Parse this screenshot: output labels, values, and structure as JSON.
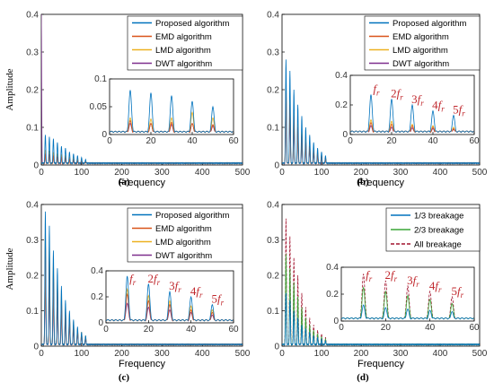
{
  "figure_title": "",
  "colors": {
    "blue": "#0072BD",
    "orange": "#D95319",
    "yellow": "#EDB120",
    "purple": "#7E2F8E",
    "green": "#3AA637",
    "red": "#A2142F",
    "harmonic_label": "#c0282d"
  },
  "chart_data": [
    {
      "id": "a",
      "type": "line",
      "caption": "(a)",
      "xlabel": "Frequency",
      "ylabel": "Amplitude",
      "xlim": [
        0,
        500
      ],
      "ylim": [
        0,
        0.4
      ],
      "xticks": [
        0,
        100,
        200,
        300,
        400,
        500
      ],
      "yticks": [
        0,
        0.1,
        0.2,
        0.3,
        0.4
      ],
      "ytick_labels": [
        "0",
        "0.1",
        "0.2",
        "0.3",
        "0.4"
      ],
      "legend": [
        "Proposed algorithm",
        "EMD algorithm",
        "LMD algorithm",
        "DWT algorithm"
      ],
      "series": [
        {
          "name": "Proposed algorithm",
          "color": "#0072BD",
          "peaks": [
            0.08,
            0.075,
            0.07,
            0.06,
            0.05,
            0.045,
            0.035,
            0.03,
            0.025,
            0.02,
            0.015
          ]
        },
        {
          "name": "EMD algorithm",
          "color": "#D95319",
          "peaks": [
            0.03,
            0.028,
            0.025,
            0.022,
            0.02,
            0.018,
            0.015,
            0.013,
            0.011,
            0.01,
            0.008
          ]
        },
        {
          "name": "LMD algorithm",
          "color": "#EDB120",
          "peaks": [
            0.04,
            0.038,
            0.034,
            0.03,
            0.028,
            0.025,
            0.022,
            0.02,
            0.017,
            0.014,
            0.012
          ]
        },
        {
          "name": "DWT algorithm",
          "color": "#7E2F8E",
          "dc": 0.4,
          "peaks": [
            0.03,
            0.028,
            0.025,
            0.022,
            0.02,
            0.018,
            0.015,
            0.013,
            0.011,
            0.01,
            0.008
          ]
        }
      ],
      "inset": {
        "xlim": [
          0,
          60
        ],
        "ylim": [
          0,
          0.1
        ],
        "xticks": [
          0,
          20,
          40,
          60
        ],
        "yticks": [
          0,
          0.05,
          0.1
        ],
        "ytick_labels": [
          "0",
          "0.05",
          "0.1"
        ],
        "harmonics": [],
        "series": [
          {
            "color": "#0072BD",
            "peaks": [
              0.08,
              0.075,
              0.07,
              0.06,
              0.05
            ]
          },
          {
            "color": "#D95319",
            "peaks": [
              0.025,
              0.02,
              0.022,
              0.02,
              0.018
            ]
          },
          {
            "color": "#EDB120",
            "peaks": [
              0.03,
              0.028,
              0.03,
              0.04,
              0.03
            ]
          },
          {
            "color": "#7E2F8E",
            "peaks": [
              0.02,
              0.02,
              0.018,
              0.02,
              0.015
            ]
          }
        ]
      }
    },
    {
      "id": "b",
      "type": "line",
      "caption": "(b)",
      "xlabel": "Frequency",
      "ylabel": "",
      "xlim": [
        0,
        500
      ],
      "ylim": [
        0,
        0.4
      ],
      "xticks": [
        0,
        100,
        200,
        300,
        400,
        500
      ],
      "yticks": [
        0,
        0.1,
        0.2,
        0.3,
        0.4
      ],
      "ytick_labels": [
        "0",
        "0.1",
        "0.2",
        "0.3",
        "0.4"
      ],
      "legend": [
        "Proposed algorithm",
        "EMD algorithm",
        "LMD algorithm",
        "DWT algorithm"
      ],
      "series": [
        {
          "name": "Proposed algorithm",
          "color": "#0072BD",
          "peaks": [
            0.28,
            0.25,
            0.2,
            0.16,
            0.13,
            0.1,
            0.08,
            0.06,
            0.045,
            0.035,
            0.025
          ]
        },
        {
          "name": "EMD algorithm",
          "color": "#D95319",
          "peaks": [
            0.2,
            0.16,
            0.13,
            0.1,
            0.08,
            0.06,
            0.05,
            0.04,
            0.03,
            0.025,
            0.02
          ]
        },
        {
          "name": "LMD algorithm",
          "color": "#EDB120",
          "peaks": [
            0.22,
            0.18,
            0.14,
            0.11,
            0.09,
            0.07,
            0.055,
            0.045,
            0.035,
            0.028,
            0.02
          ]
        },
        {
          "name": "DWT algorithm",
          "color": "#7E2F8E",
          "dc": 0.0,
          "peaks": [
            0.15,
            0.12,
            0.1,
            0.08,
            0.06,
            0.05,
            0.04,
            0.03,
            0.025,
            0.02,
            0.015
          ]
        }
      ],
      "inset": {
        "xlim": [
          0,
          60
        ],
        "ylim": [
          0,
          0.4
        ],
        "xticks": [
          0,
          20,
          40,
          60
        ],
        "yticks": [
          0,
          0.2,
          0.4
        ],
        "ytick_labels": [
          "0",
          "0.2",
          "0.4"
        ],
        "harmonics": [
          {
            "coef": "",
            "f": "f",
            "sub": "r",
            "x": 10
          },
          {
            "coef": "2",
            "f": "f",
            "sub": "r",
            "x": 20
          },
          {
            "coef": "3",
            "f": "f",
            "sub": "r",
            "x": 30
          },
          {
            "coef": "4",
            "f": "f",
            "sub": "r",
            "x": 40
          },
          {
            "coef": "5",
            "f": "f",
            "sub": "r",
            "x": 50
          }
        ],
        "series": [
          {
            "color": "#0072BD",
            "peaks": [
              0.27,
              0.24,
              0.2,
              0.16,
              0.13
            ]
          },
          {
            "color": "#D95319",
            "peaks": [
              0.08,
              0.07,
              0.06,
              0.05,
              0.04
            ]
          },
          {
            "color": "#EDB120",
            "peaks": [
              0.1,
              0.09,
              0.07,
              0.06,
              0.05
            ]
          },
          {
            "color": "#7E2F8E",
            "peaks": [
              0.06,
              0.05,
              0.045,
              0.04,
              0.035
            ]
          }
        ]
      }
    },
    {
      "id": "c",
      "type": "line",
      "caption": "(c)",
      "xlabel": "Frequency",
      "ylabel": "Amplitude",
      "xlim": [
        0,
        500
      ],
      "ylim": [
        0,
        0.4
      ],
      "xticks": [
        0,
        100,
        200,
        300,
        400,
        500
      ],
      "yticks": [
        0,
        0.1,
        0.2,
        0.3,
        0.4
      ],
      "ytick_labels": [
        "0",
        "0.1",
        "0.2",
        "0.3",
        "0.4"
      ],
      "legend": [
        "Proposed algorithm",
        "EMD algorithm",
        "LMD algorithm",
        "DWT algorithm"
      ],
      "series": [
        {
          "name": "Proposed algorithm",
          "color": "#0072BD",
          "peaks": [
            0.38,
            0.34,
            0.27,
            0.22,
            0.17,
            0.13,
            0.1,
            0.075,
            0.055,
            0.04,
            0.03
          ]
        },
        {
          "name": "EMD algorithm",
          "color": "#D95319",
          "peaks": [
            0.3,
            0.26,
            0.21,
            0.17,
            0.13,
            0.1,
            0.08,
            0.06,
            0.045,
            0.035,
            0.025
          ]
        },
        {
          "name": "LMD algorithm",
          "color": "#EDB120",
          "peaks": [
            0.33,
            0.29,
            0.24,
            0.19,
            0.15,
            0.11,
            0.09,
            0.07,
            0.05,
            0.04,
            0.03
          ]
        },
        {
          "name": "DWT algorithm",
          "color": "#7E2F8E",
          "dc": 0.0,
          "peaks": [
            0.2,
            0.17,
            0.14,
            0.11,
            0.09,
            0.07,
            0.055,
            0.045,
            0.035,
            0.028,
            0.02
          ]
        }
      ],
      "inset": {
        "xlim": [
          0,
          60
        ],
        "ylim": [
          0,
          0.4
        ],
        "xticks": [
          0,
          20,
          40,
          60
        ],
        "yticks": [
          0,
          0.2,
          0.4
        ],
        "ytick_labels": [
          "0",
          "0.2",
          "0.4"
        ],
        "harmonics": [
          {
            "coef": "",
            "f": "f",
            "sub": "r",
            "x": 10
          },
          {
            "coef": "2",
            "f": "f",
            "sub": "r",
            "x": 20
          },
          {
            "coef": "3",
            "f": "f",
            "sub": "r",
            "x": 30
          },
          {
            "coef": "4",
            "f": "f",
            "sub": "r",
            "x": 40
          },
          {
            "coef": "5",
            "f": "f",
            "sub": "r",
            "x": 50
          }
        ],
        "series": [
          {
            "color": "#0072BD",
            "peaks": [
              0.36,
              0.3,
              0.24,
              0.2,
              0.14
            ]
          },
          {
            "color": "#D95319",
            "peaks": [
              0.22,
              0.17,
              0.14,
              0.1,
              0.08
            ]
          },
          {
            "color": "#EDB120",
            "peaks": [
              0.26,
              0.21,
              0.17,
              0.13,
              0.1
            ]
          },
          {
            "color": "#7E2F8E",
            "peaks": [
              0.15,
              0.12,
              0.1,
              0.08,
              0.06
            ]
          }
        ]
      }
    },
    {
      "id": "d",
      "type": "line",
      "caption": "(d)",
      "xlabel": "Frequency",
      "ylabel": "",
      "xlim": [
        0,
        500
      ],
      "ylim": [
        0,
        0.4
      ],
      "xticks": [
        0,
        100,
        200,
        300,
        400,
        500
      ],
      "yticks": [
        0,
        0.1,
        0.2,
        0.3,
        0.4
      ],
      "ytick_labels": [
        "0",
        "0.1",
        "0.2",
        "0.3",
        "0.4"
      ],
      "legend": [
        "1/3 breakage",
        "2/3 breakage",
        "All breakage"
      ],
      "series": [
        {
          "name": "1/3 breakage",
          "color": "#0072BD",
          "peaks": [
            0.15,
            0.13,
            0.1,
            0.08,
            0.06,
            0.05,
            0.04,
            0.03,
            0.025,
            0.02,
            0.015
          ]
        },
        {
          "name": "2/3 breakage",
          "color": "#3AA637",
          "peaks": [
            0.26,
            0.22,
            0.18,
            0.14,
            0.11,
            0.08,
            0.06,
            0.045,
            0.035,
            0.027,
            0.02
          ]
        },
        {
          "name": "All breakage",
          "color": "#A2142F",
          "dash": true,
          "peaks": [
            0.36,
            0.31,
            0.25,
            0.2,
            0.15,
            0.11,
            0.08,
            0.06,
            0.045,
            0.035,
            0.025
          ]
        }
      ],
      "inset": {
        "xlim": [
          0,
          60
        ],
        "ylim": [
          0,
          0.4
        ],
        "xticks": [
          0,
          20,
          40,
          60
        ],
        "yticks": [
          0,
          0.2,
          0.4
        ],
        "ytick_labels": [
          "0",
          "0.2",
          "0.4"
        ],
        "harmonics": [
          {
            "coef": "",
            "f": "f",
            "sub": "r",
            "x": 10
          },
          {
            "coef": "2",
            "f": "f",
            "sub": "r",
            "x": 20
          },
          {
            "coef": "3",
            "f": "f",
            "sub": "r",
            "x": 30
          },
          {
            "coef": "4",
            "f": "f",
            "sub": "r",
            "x": 40
          },
          {
            "coef": "5",
            "f": "f",
            "sub": "r",
            "x": 50
          }
        ],
        "series": [
          {
            "color": "#0072BD",
            "peaks": [
              0.12,
              0.1,
              0.09,
              0.08,
              0.07
            ]
          },
          {
            "color": "#3AA637",
            "peaks": [
              0.25,
              0.22,
              0.19,
              0.16,
              0.13
            ]
          },
          {
            "color": "#A2142F",
            "dash": true,
            "peaks": [
              0.35,
              0.3,
              0.26,
              0.22,
              0.18
            ]
          }
        ]
      }
    }
  ]
}
